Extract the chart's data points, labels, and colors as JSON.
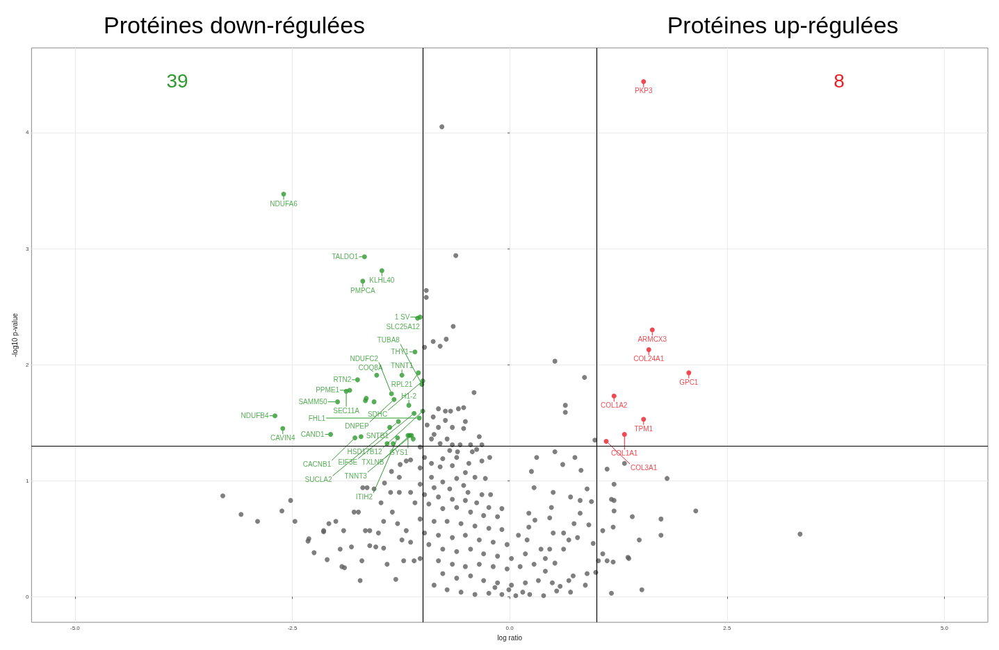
{
  "chart_data": {
    "type": "scatter",
    "xlabel": "log ratio",
    "ylabel": "-log10 p-value",
    "annotations": [
      "Protéines down-régulées",
      "Protéines up-régulées",
      "39",
      "8",
      {
        "text": "NDUFA6",
        "x": -2.6,
        "y": 3.47
      },
      {
        "text": "TALDO1",
        "x": -1.67,
        "y": 2.93
      },
      {
        "text": "KLHL40",
        "x": -1.47,
        "y": 2.81
      },
      {
        "text": "PMPCA",
        "x": -1.69,
        "y": 2.72
      },
      {
        "text": "1 SV",
        "x": -1.03,
        "y": 2.41
      },
      {
        "text": "SLC25A12",
        "x": -1.06,
        "y": 2.4
      },
      {
        "text": "THY1",
        "x": -1.09,
        "y": 2.11
      },
      {
        "text": "RTN2",
        "x": -1.75,
        "y": 1.87
      },
      {
        "text": "COQ8A",
        "x": -1.53,
        "y": 1.91
      },
      {
        "text": "TNNT1",
        "x": -1.24,
        "y": 1.91
      },
      {
        "text": "RPL21",
        "x": -1.05,
        "y": 1.93
      },
      {
        "text": "SDHC",
        "x": -1.0,
        "y": 1.86
      },
      {
        "text": "TUBA8",
        "x": -1.01,
        "y": 1.83
      },
      {
        "text": "PPME1",
        "x": -1.84,
        "y": 1.78
      },
      {
        "text": "SEC11A",
        "x": -1.88,
        "y": 1.77
      },
      {
        "text": "SAMM50",
        "x": -1.98,
        "y": 1.68
      },
      {
        "text": "DNPEP",
        "x": -1.33,
        "y": 1.7
      },
      {
        "text": "NDUFC2",
        "x": -1.36,
        "y": 1.75
      },
      {
        "text": "H1-2",
        "x": -1.16,
        "y": 1.65
      },
      {
        "text": "EIF3E",
        "x": -1.1,
        "y": 1.58
      },
      {
        "text": "HSD17B12",
        "x": -1.0,
        "y": 1.6
      },
      {
        "text": "FHL1",
        "x": -1.04,
        "y": 1.54
      },
      {
        "text": "SUCLA2",
        "x": -1.28,
        "y": 1.51
      },
      {
        "text": "SNTB1",
        "x": -1.38,
        "y": 1.46
      },
      {
        "text": "CAND1",
        "x": -2.06,
        "y": 1.4
      },
      {
        "text": "NDUFB4",
        "x": -2.7,
        "y": 1.56
      },
      {
        "text": "CAVIN4",
        "x": -2.61,
        "y": 1.45
      },
      {
        "text": "CACNB1",
        "x": -1.78,
        "y": 1.37
      },
      {
        "text": "ITIH2",
        "x": -1.29,
        "y": 1.37
      },
      {
        "text": "GYS1",
        "x": -1.17,
        "y": 1.39
      },
      {
        "text": "TXLNB",
        "x": -1.15,
        "y": 1.39
      },
      {
        "text": "TNNT3",
        "x": -1.13,
        "y": 1.39
      },
      {
        "text": "PKP3",
        "x": 1.54,
        "y": 4.44
      },
      {
        "text": "ARMCX3",
        "x": 1.64,
        "y": 2.3
      },
      {
        "text": "COL24A1",
        "x": 1.6,
        "y": 2.13
      },
      {
        "text": "GPC1",
        "x": 2.06,
        "y": 1.93
      },
      {
        "text": "COL1A2",
        "x": 1.2,
        "y": 1.73
      },
      {
        "text": "TPM1",
        "x": 1.54,
        "y": 1.53
      },
      {
        "text": "COL1A1",
        "x": 1.32,
        "y": 1.4
      },
      {
        "text": "COL3A1",
        "x": 1.11,
        "y": 1.34
      }
    ],
    "xlim": [
      -5.5,
      5.5
    ],
    "ylim": [
      -0.22,
      4.73
    ],
    "xticks": [
      {
        "value": -5,
        "label": "-5.0"
      },
      {
        "value": -2.5,
        "label": "-2.5"
      },
      {
        "value": 0,
        "label": "0.0"
      },
      {
        "value": 2.5,
        "label": "2.5"
      },
      {
        "value": 5,
        "label": "5.0"
      }
    ],
    "yticks": [
      0,
      1,
      2,
      3,
      4
    ],
    "grid": true,
    "marker": "circle",
    "ref_lines": [
      {
        "axis": "x",
        "value": -1,
        "color": "#000000"
      },
      {
        "axis": "x",
        "value": 1,
        "color": "#000000"
      },
      {
        "axis": "y",
        "value": 1.3,
        "color": "#000000"
      }
    ],
    "series": [
      {
        "color": "#5f5f5f",
        "x": [
          -0.78,
          -0.62,
          -0.96,
          -0.96,
          -0.65,
          -0.73,
          -0.88,
          -0.8,
          -0.98,
          0.52,
          0.86,
          0.64,
          0.64,
          0.98,
          1.32,
          1.81,
          1.2,
          1.2,
          2.14,
          1.41,
          1.74,
          1.2,
          3.34,
          1.49,
          1.74,
          1.36,
          1.52,
          1.19,
          1.19,
          -3.3,
          -3.09,
          -2.9,
          -2.52,
          -2.62,
          -2.47,
          -2.31,
          -2.14,
          -1.93,
          -1.7,
          -0.82,
          -0.74,
          -0.68,
          -0.59,
          -0.53,
          -0.41,
          -0.88,
          -0.51,
          -0.74,
          -0.95,
          -0.82,
          -0.66,
          -0.53,
          -0.87,
          -0.72,
          -0.35,
          -0.9,
          -0.8,
          -0.66,
          -0.57,
          -0.45,
          -0.32,
          -1.03,
          -0.69,
          -0.6,
          -0.43,
          -0.38,
          -0.23,
          -0.98,
          -0.9,
          -0.77,
          -0.61,
          -0.32,
          -0.47,
          -1.14,
          -1.03,
          -0.8,
          -0.66,
          -0.51,
          -0.4,
          -0.28,
          -0.9,
          -0.77,
          -0.61,
          -1.03,
          -0.87,
          -0.69,
          -0.53,
          -0.48,
          -0.32,
          -0.22,
          -1.14,
          -0.98,
          -0.82,
          -0.66,
          -0.51,
          -0.38,
          -0.24,
          -0.09,
          -1.09,
          -0.93,
          -0.77,
          -0.61,
          -0.45,
          -0.3,
          -0.14,
          -1.03,
          -0.87,
          -0.72,
          -0.56,
          -0.4,
          -0.24,
          -0.09,
          -1.19,
          -0.98,
          -0.82,
          -0.66,
          -0.51,
          -0.35,
          -0.19,
          -0.03,
          -1.14,
          -0.93,
          -0.77,
          -0.61,
          -0.45,
          -0.3,
          -0.14,
          0.02,
          0.18,
          -1.03,
          -0.82,
          -0.66,
          -0.51,
          -0.35,
          -0.19,
          -0.03,
          0.12,
          0.28,
          0.41,
          -0.77,
          -0.61,
          -0.45,
          -0.3,
          -0.14,
          0.02,
          0.18,
          0.33,
          0.49,
          -0.87,
          -0.72,
          -0.56,
          -0.4,
          -0.24,
          -0.09,
          0.07,
          0.23,
          0.39,
          0.54,
          0.7,
          -0.17,
          -0.01,
          0.15,
          -1.24,
          -1.35,
          -1.51,
          -1.61,
          -1.74,
          -1.82,
          -1.95,
          -2.08,
          -2.14,
          -2.32,
          -2.25,
          -2.1,
          -1.9,
          -1.72,
          -1.41,
          -1.31,
          -1.22,
          -1.1,
          -1.48,
          -1.37,
          -1.27,
          -1.66,
          -1.45,
          -1.29,
          -1.61,
          -1.54,
          -1.45,
          -1.64,
          -1.79,
          -2.0,
          -1.91,
          -1.19,
          -1.26,
          -1.27,
          -1.36,
          -1.44,
          -1.56,
          -1.69,
          0.31,
          0.25,
          0.52,
          0.61,
          0.75,
          0.82,
          0.89,
          0.7,
          0.81,
          0.94,
          0.48,
          0.5,
          0.28,
          0.22,
          0.29,
          0.46,
          0.81,
          0.74,
          0.91,
          0.62,
          0.68,
          0.78,
          0.96,
          0.5,
          0.1,
          0.2,
          1.12,
          1.17,
          1.07,
          1.12,
          1.37,
          1.07,
          0.89,
          0.99,
          0.73,
          0.87,
          0.68,
          0.58,
          1.17,
          1.02,
          0.22,
          0.36,
          0.46,
          0.62,
          0.41,
          0.52
        ],
        "values": [
          4.05,
          2.94,
          2.64,
          2.58,
          2.33,
          2.22,
          2.2,
          2.16,
          2.15,
          2.03,
          1.89,
          1.65,
          1.59,
          1.35,
          1.15,
          1.02,
          0.97,
          0.83,
          0.74,
          0.69,
          0.67,
          0.74,
          0.54,
          0.49,
          0.53,
          0.34,
          0.06,
          0.6,
          0.3,
          0.87,
          0.71,
          0.65,
          0.83,
          0.74,
          0.65,
          0.5,
          0.56,
          0.26,
          0.31,
          1.62,
          1.6,
          1.6,
          1.62,
          1.63,
          1.76,
          1.55,
          1.51,
          1.52,
          1.48,
          1.46,
          1.46,
          1.45,
          1.4,
          1.36,
          1.38,
          1.36,
          1.32,
          1.31,
          1.31,
          1.31,
          1.31,
          1.29,
          1.26,
          1.25,
          1.25,
          1.27,
          1.2,
          1.2,
          1.15,
          1.19,
          1.2,
          1.17,
          1.15,
          1.18,
          1.11,
          1.12,
          1.13,
          1.07,
          1.03,
          1.02,
          1.03,
          0.99,
          1.02,
          0.97,
          0.94,
          0.93,
          0.96,
          0.9,
          0.88,
          0.88,
          0.9,
          0.88,
          0.86,
          0.84,
          0.83,
          0.81,
          0.77,
          0.76,
          0.81,
          0.8,
          0.76,
          0.77,
          0.73,
          0.7,
          0.69,
          0.67,
          0.65,
          0.65,
          0.63,
          0.61,
          0.59,
          0.58,
          0.57,
          0.55,
          0.53,
          0.51,
          0.53,
          0.49,
          0.47,
          0.45,
          0.47,
          0.45,
          0.41,
          0.39,
          0.41,
          0.37,
          0.35,
          0.33,
          0.37,
          0.33,
          0.31,
          0.28,
          0.26,
          0.28,
          0.26,
          0.24,
          0.26,
          0.28,
          0.22,
          0.2,
          0.16,
          0.18,
          0.14,
          0.12,
          0.1,
          0.12,
          0.14,
          0.12,
          0.1,
          0.06,
          0.04,
          0.02,
          0.03,
          0.02,
          0.01,
          0.02,
          0.01,
          0.05,
          0.04,
          0.08,
          0.06,
          0.04,
          0.49,
          0.73,
          0.55,
          0.57,
          0.73,
          0.43,
          0.41,
          0.63,
          0.57,
          0.48,
          0.38,
          0.32,
          0.25,
          0.14,
          0.28,
          0.15,
          0.31,
          0.31,
          0.81,
          0.9,
          0.9,
          0.57,
          0.65,
          0.63,
          0.44,
          0.43,
          0.42,
          0.94,
          0.73,
          0.65,
          0.57,
          1.17,
          1.14,
          1.03,
          1.08,
          0.98,
          0.93,
          0.94,
          1.2,
          1.08,
          1.25,
          1.14,
          1.2,
          1.09,
          0.93,
          0.86,
          0.83,
          0.82,
          0.77,
          0.9,
          0.94,
          0.72,
          0.66,
          0.68,
          0.72,
          0.63,
          0.62,
          0.55,
          0.49,
          0.51,
          0.46,
          0.55,
          0.53,
          0.49,
          1.1,
          0.84,
          0.57,
          0.31,
          0.33,
          0.37,
          0.2,
          0.21,
          0.18,
          0.1,
          0.14,
          0.09,
          0.03,
          0.31,
          0.6,
          0.41,
          0.41,
          0.41,
          0.33,
          0.29
        ]
      },
      {
        "color": "#2e9a2e",
        "x": [
          -2.6,
          -1.67,
          -1.47,
          -1.69,
          -1.03,
          -1.06,
          -1.09,
          -1.75,
          -1.53,
          -1.24,
          -1.05,
          -1.0,
          -1.01,
          -1.84,
          -1.88,
          -1.98,
          -1.66,
          -1.65,
          -1.56,
          -1.33,
          -1.36,
          -1.16,
          -1.1,
          -1.0,
          -1.04,
          -1.28,
          -1.38,
          -2.06,
          -2.7,
          -2.61,
          -1.78,
          -1.71,
          -1.29,
          -1.17,
          -1.15,
          -1.13,
          -1.11,
          -1.41,
          -1.34
        ],
        "values": [
          3.47,
          2.93,
          2.81,
          2.72,
          2.41,
          2.4,
          2.11,
          1.87,
          1.91,
          1.91,
          1.93,
          1.86,
          1.83,
          1.78,
          1.77,
          1.68,
          1.69,
          1.71,
          1.68,
          1.7,
          1.75,
          1.65,
          1.58,
          1.6,
          1.54,
          1.51,
          1.46,
          1.4,
          1.56,
          1.45,
          1.37,
          1.38,
          1.37,
          1.39,
          1.39,
          1.39,
          1.36,
          1.32,
          1.32
        ]
      },
      {
        "color": "#ee1c25",
        "x": [
          1.54,
          1.64,
          1.6,
          2.06,
          1.2,
          1.54,
          1.32,
          1.11
        ],
        "values": [
          4.44,
          2.3,
          2.13,
          1.93,
          1.73,
          1.53,
          1.4,
          1.34
        ]
      }
    ]
  }
}
